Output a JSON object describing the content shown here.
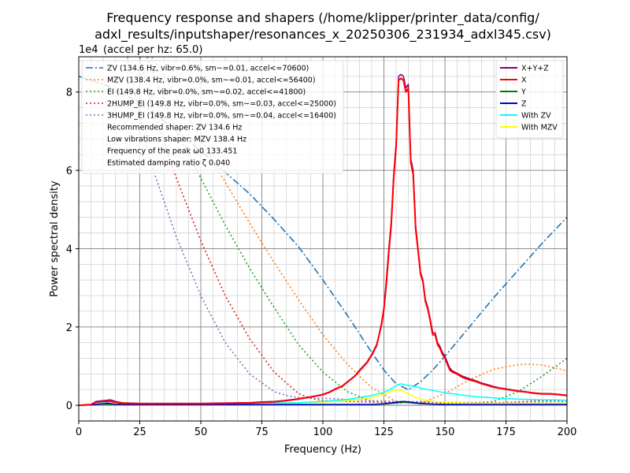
{
  "chart_data": {
    "type": "line",
    "title_line1": "Frequency response and shapers (/home/klipper/printer_data/config/",
    "title_line2": "adxl_results/inputshaper/resonances_x_20250306_231934_adxl345.csv)",
    "offset_text": "1e4",
    "subtitle": "(accel per hz: 65.0)",
    "xlabel": "Frequency (Hz)",
    "ylabel": "Power spectral density",
    "xlim": [
      0,
      200
    ],
    "ylim": [
      -0.4,
      8.9
    ],
    "x_ticks": [
      0,
      25,
      50,
      75,
      100,
      125,
      150,
      175,
      200
    ],
    "y_ticks": [
      0,
      2,
      4,
      6,
      8
    ],
    "grid": true,
    "shaper_legend": {
      "placement": "top-left",
      "entries": [
        {
          "label": "ZV (134.6 Hz, vibr=0.6%, sm~=0.01, accel<=70600)",
          "color": "#1f77b4",
          "style": "dashdot"
        },
        {
          "label": "MZV (138.4 Hz, vibr=0.0%, sm~=0.01, accel<=56400)",
          "color": "#ff7f0e",
          "style": "dotted"
        },
        {
          "label": "EI (149.8 Hz, vibr=0.0%, sm~=0.02, accel<=41800)",
          "color": "#2ca02c",
          "style": "dotted"
        },
        {
          "label": "2HUMP_EI (149.8 Hz, vibr=0.0%, sm~=0.03, accel<=25000)",
          "color": "#d62728",
          "style": "dotted"
        },
        {
          "label": "3HUMP_EI (149.8 Hz, vibr=0.0%, sm~=0.04, accel<=16400)",
          "color": "#9467bd",
          "style": "dotted"
        }
      ],
      "notes": [
        "Recommended shaper: ZV 134.6 Hz",
        "Low vibrations shaper: MZV 138.4 Hz",
        "Frequency of the peak ω0 133.451",
        "Estimated damping ratio ζ 0.040"
      ]
    },
    "psd_legend": {
      "placement": "top-right",
      "entries": [
        {
          "label": "X+Y+Z",
          "color": "#800080"
        },
        {
          "label": "X",
          "color": "#ff0000"
        },
        {
          "label": "Y",
          "color": "#008000"
        },
        {
          "label": "Z",
          "color": "#0000cd"
        },
        {
          "label": "With ZV",
          "color": "#00ffff"
        },
        {
          "label": "With MZV",
          "color": "#ffff00"
        }
      ]
    },
    "psd_series": [
      {
        "name": "X+Y+Z",
        "color": "#800080",
        "width": 1.5,
        "x": [
          0,
          5,
          7,
          10,
          13,
          15,
          18,
          20,
          25,
          30,
          40,
          50,
          60,
          70,
          75,
          80,
          85,
          90,
          95,
          100,
          103,
          105,
          108,
          110,
          113,
          115,
          118,
          120,
          122,
          123,
          124,
          125,
          126,
          127,
          128,
          129,
          130,
          131,
          132,
          133,
          134,
          135,
          136,
          137,
          138,
          139,
          140,
          141,
          142,
          143,
          144,
          145,
          146,
          147,
          148,
          149,
          150,
          151,
          152,
          153,
          155,
          157,
          160,
          163,
          165,
          168,
          170,
          173,
          175,
          178,
          180,
          183,
          185,
          188,
          190,
          193,
          195,
          197,
          200
        ],
        "y": [
          0,
          0.02,
          0.1,
          0.12,
          0.14,
          0.1,
          0.06,
          0.06,
          0.05,
          0.05,
          0.05,
          0.05,
          0.06,
          0.07,
          0.09,
          0.1,
          0.13,
          0.17,
          0.22,
          0.28,
          0.35,
          0.42,
          0.5,
          0.6,
          0.75,
          0.9,
          1.1,
          1.3,
          1.55,
          1.8,
          2.1,
          2.5,
          3.2,
          4.0,
          4.7,
          5.9,
          6.7,
          8.4,
          8.45,
          8.4,
          8.1,
          8.2,
          6.3,
          6.0,
          4.6,
          4.0,
          3.4,
          3.2,
          2.7,
          2.5,
          2.2,
          1.85,
          1.85,
          1.6,
          1.5,
          1.35,
          1.25,
          1.1,
          0.95,
          0.88,
          0.82,
          0.75,
          0.68,
          0.62,
          0.57,
          0.52,
          0.48,
          0.44,
          0.42,
          0.39,
          0.37,
          0.35,
          0.33,
          0.31,
          0.3,
          0.3,
          0.29,
          0.28,
          0.26
        ]
      },
      {
        "name": "X",
        "color": "#ff0000",
        "width": 2.0,
        "x": [
          0,
          5,
          7,
          10,
          13,
          15,
          18,
          20,
          25,
          30,
          40,
          50,
          60,
          70,
          75,
          80,
          85,
          90,
          95,
          100,
          103,
          105,
          108,
          110,
          113,
          115,
          118,
          120,
          122,
          123,
          124,
          125,
          126,
          127,
          128,
          129,
          130,
          131,
          132,
          133,
          134,
          135,
          136,
          137,
          138,
          139,
          140,
          141,
          142,
          143,
          144,
          145,
          146,
          147,
          148,
          149,
          150,
          151,
          152,
          153,
          155,
          157,
          160,
          163,
          165,
          168,
          170,
          173,
          175,
          178,
          180,
          183,
          185,
          188,
          190,
          193,
          195,
          197,
          200
        ],
        "y": [
          0,
          0.02,
          0.08,
          0.1,
          0.1,
          0.08,
          0.05,
          0.05,
          0.04,
          0.04,
          0.04,
          0.04,
          0.05,
          0.06,
          0.08,
          0.09,
          0.12,
          0.16,
          0.21,
          0.27,
          0.34,
          0.41,
          0.49,
          0.59,
          0.74,
          0.88,
          1.08,
          1.28,
          1.52,
          1.78,
          2.05,
          2.45,
          3.1,
          3.9,
          4.6,
          5.8,
          6.6,
          8.3,
          8.35,
          8.3,
          8.0,
          8.1,
          6.2,
          5.9,
          4.5,
          3.95,
          3.35,
          3.15,
          2.65,
          2.45,
          2.15,
          1.8,
          1.8,
          1.55,
          1.45,
          1.3,
          1.2,
          1.05,
          0.9,
          0.85,
          0.8,
          0.72,
          0.65,
          0.6,
          0.55,
          0.5,
          0.46,
          0.43,
          0.41,
          0.38,
          0.36,
          0.34,
          0.32,
          0.3,
          0.29,
          0.29,
          0.28,
          0.27,
          0.25
        ]
      },
      {
        "name": "Y",
        "color": "#008000",
        "width": 1.5,
        "x": [
          0,
          5,
          10,
          15,
          20,
          30,
          50,
          80,
          100,
          115,
          120,
          125,
          130,
          133,
          135,
          140,
          145,
          150,
          160,
          170,
          180,
          190,
          200
        ],
        "y": [
          0,
          0.01,
          0.03,
          0.02,
          0.02,
          0.02,
          0.02,
          0.02,
          0.02,
          0.02,
          0.02,
          0.03,
          0.06,
          0.08,
          0.07,
          0.04,
          0.03,
          0.02,
          0.02,
          0.02,
          0.02,
          0.02,
          0.02
        ]
      },
      {
        "name": "Z",
        "color": "#0000cd",
        "width": 1.5,
        "x": [
          0,
          5,
          10,
          12,
          15,
          20,
          30,
          50,
          80,
          100,
          115,
          120,
          125,
          130,
          133,
          135,
          140,
          145,
          150,
          160,
          170,
          180,
          190,
          200
        ],
        "y": [
          0,
          0.01,
          0.04,
          0.05,
          0.03,
          0.02,
          0.02,
          0.02,
          0.02,
          0.02,
          0.02,
          0.02,
          0.04,
          0.08,
          0.1,
          0.09,
          0.05,
          0.03,
          0.02,
          0.02,
          0.02,
          0.02,
          0.02,
          0.02
        ]
      },
      {
        "name": "With ZV",
        "color": "#00ffff",
        "width": 1.5,
        "x": [
          0,
          5,
          10,
          13,
          15,
          20,
          30,
          50,
          70,
          90,
          100,
          110,
          115,
          120,
          125,
          128,
          130,
          132,
          134,
          136,
          138,
          140,
          145,
          150,
          155,
          160,
          165,
          170,
          175,
          180,
          185,
          190,
          195,
          200
        ],
        "y": [
          0,
          0.02,
          0.08,
          0.1,
          0.08,
          0.05,
          0.04,
          0.04,
          0.05,
          0.07,
          0.1,
          0.15,
          0.2,
          0.25,
          0.33,
          0.42,
          0.5,
          0.55,
          0.52,
          0.5,
          0.48,
          0.44,
          0.38,
          0.32,
          0.28,
          0.24,
          0.21,
          0.19,
          0.17,
          0.16,
          0.15,
          0.14,
          0.14,
          0.13
        ]
      },
      {
        "name": "With MZV",
        "color": "#ffff00",
        "width": 1.5,
        "x": [
          0,
          5,
          10,
          13,
          15,
          20,
          30,
          50,
          70,
          90,
          100,
          110,
          115,
          120,
          125,
          128,
          130,
          132,
          134,
          136,
          138,
          140,
          145,
          150,
          155,
          160,
          170,
          180,
          190,
          200
        ],
        "y": [
          0,
          0.02,
          0.1,
          0.12,
          0.1,
          0.06,
          0.04,
          0.04,
          0.05,
          0.06,
          0.08,
          0.12,
          0.15,
          0.2,
          0.28,
          0.35,
          0.4,
          0.38,
          0.32,
          0.26,
          0.2,
          0.16,
          0.1,
          0.08,
          0.06,
          0.05,
          0.05,
          0.05,
          0.05,
          0.05
        ]
      }
    ],
    "shaper_curves": [
      {
        "name": "ZV",
        "color": "#1f77b4",
        "style": "dashdot",
        "x": [
          0,
          10,
          20,
          30,
          40,
          50,
          60,
          70,
          80,
          90,
          100,
          110,
          120,
          125,
          130,
          135,
          140,
          145,
          150,
          160,
          170,
          180,
          190,
          200
        ],
        "y": [
          8.4,
          8.2,
          7.9,
          7.5,
          7.0,
          6.5,
          5.95,
          5.4,
          4.75,
          4.05,
          3.2,
          2.3,
          1.35,
          0.9,
          0.55,
          0.4,
          0.6,
          0.9,
          1.25,
          2.0,
          2.75,
          3.45,
          4.15,
          4.8
        ]
      },
      {
        "name": "MZV",
        "color": "#ff7f0e",
        "style": "dotted",
        "x": [
          30,
          40,
          50,
          60,
          70,
          80,
          90,
          100,
          110,
          120,
          130,
          140,
          150,
          160,
          170,
          180,
          185,
          190,
          200
        ],
        "y": [
          8.9,
          7.9,
          6.8,
          5.7,
          4.65,
          3.65,
          2.7,
          1.8,
          1.05,
          0.45,
          0.1,
          0.05,
          0.3,
          0.65,
          0.92,
          1.04,
          1.05,
          1.03,
          0.88
        ]
      },
      {
        "name": "EI",
        "color": "#2ca02c",
        "style": "dotted",
        "x": [
          28,
          40,
          50,
          60,
          70,
          80,
          90,
          100,
          110,
          120,
          130,
          140,
          150,
          160,
          170,
          180,
          190,
          200
        ],
        "y": [
          8.9,
          7.0,
          5.8,
          4.6,
          3.5,
          2.5,
          1.55,
          0.85,
          0.35,
          0.1,
          0.05,
          0.1,
          0.05,
          0.05,
          0.1,
          0.35,
          0.75,
          1.2
        ]
      },
      {
        "name": "2HUMP_EI",
        "color": "#d62728",
        "style": "dotted",
        "x": [
          25,
          30,
          40,
          50,
          60,
          70,
          80,
          90,
          95,
          100,
          110,
          120,
          130,
          140,
          150,
          160,
          170,
          180,
          190,
          200
        ],
        "y": [
          8.9,
          7.6,
          5.8,
          4.2,
          2.8,
          1.7,
          0.85,
          0.3,
          0.18,
          0.12,
          0.1,
          0.08,
          0.08,
          0.08,
          0.06,
          0.05,
          0.06,
          0.09,
          0.12,
          0.13
        ]
      },
      {
        "name": "3HUMP_EI",
        "color": "#9467bd",
        "style": "dotted",
        "x": [
          20,
          25,
          30,
          40,
          50,
          60,
          70,
          80,
          85,
          90,
          95,
          100,
          110,
          120,
          130,
          140,
          150,
          160,
          170,
          180,
          190,
          200
        ],
        "y": [
          8.9,
          7.4,
          6.1,
          4.3,
          2.8,
          1.6,
          0.8,
          0.35,
          0.25,
          0.2,
          0.18,
          0.18,
          0.15,
          0.12,
          0.1,
          0.09,
          0.08,
          0.07,
          0.07,
          0.08,
          0.09,
          0.1
        ]
      }
    ]
  }
}
